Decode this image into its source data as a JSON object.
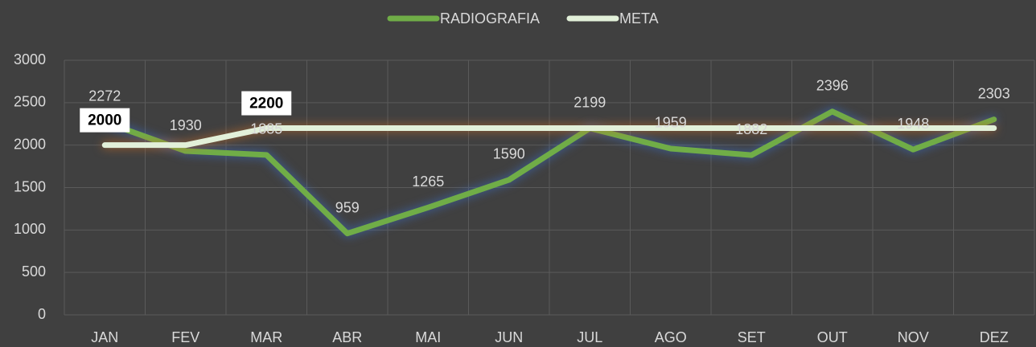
{
  "chart_data": {
    "type": "line",
    "categories": [
      "JAN",
      "FEV",
      "MAR",
      "ABR",
      "MAI",
      "JUN",
      "JUL",
      "AGO",
      "SET",
      "OUT",
      "NOV",
      "DEZ"
    ],
    "series": [
      {
        "name": "RADIOGRAFIA",
        "color": "#70ad47",
        "values": [
          2272,
          1930,
          1885,
          959,
          1265,
          1590,
          2199,
          1959,
          1882,
          2396,
          1948,
          2303
        ]
      },
      {
        "name": "META",
        "color": "#e2f0d9",
        "values": [
          2000,
          2000,
          2200,
          2200,
          2200,
          2200,
          2200,
          2200,
          2200,
          2200,
          2200,
          2200
        ],
        "value_labels": [
          "2000",
          null,
          "2200",
          null,
          null,
          null,
          null,
          null,
          null,
          null,
          null,
          null
        ]
      }
    ],
    "ylim": [
      0,
      3000
    ],
    "yticks": [
      0,
      500,
      1000,
      1500,
      2000,
      2500,
      3000
    ],
    "grid": true,
    "legend": "top"
  }
}
